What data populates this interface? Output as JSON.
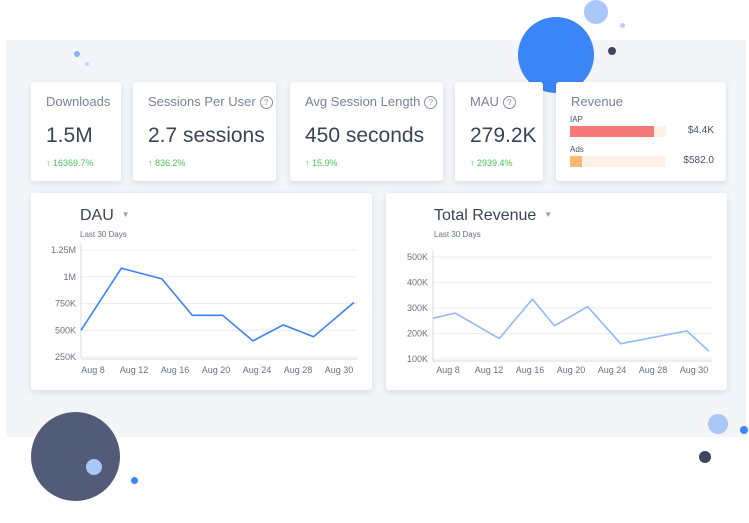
{
  "kpis": [
    {
      "label": "Downloads",
      "value": "1.5M",
      "change": "16369.7%",
      "help": false
    },
    {
      "label": "Sessions Per User",
      "value": "2.7 sessions",
      "change": "836.2%",
      "help": true
    },
    {
      "label": "Avg Session Length",
      "value": "450 seconds",
      "change": "15.9%",
      "help": true
    },
    {
      "label": "MAU",
      "value": "279.2K",
      "change": "2939.4%",
      "help": true
    }
  ],
  "revenue_card": {
    "title": "Revenue",
    "rows": [
      {
        "label": "IAP",
        "value": "$4.4K",
        "fill": 0.88,
        "color": "#f47a7a"
      },
      {
        "label": "Ads",
        "value": "$582.0",
        "fill": 0.12,
        "color": "#f9b872"
      }
    ]
  },
  "colors": {
    "accent_blue": "#3b82f6",
    "positive_green": "#4cbf5a",
    "dark_circle": "#525b78"
  },
  "chart_data": [
    {
      "type": "line",
      "title": "DAU",
      "subtitle": "Last 30 Days",
      "x_ticks": [
        "Aug 8",
        "Aug 12",
        "Aug 16",
        "Aug 20",
        "Aug 24",
        "Aug 28",
        "Aug 30"
      ],
      "y_ticks": [
        "250K",
        "500K",
        "750K",
        "1M",
        "1.25M"
      ],
      "ylim": [
        250000,
        1250000
      ],
      "line_color": "#3b82f6",
      "series": [
        {
          "x": [
            8,
            12,
            16,
            19,
            22,
            25,
            28,
            31,
            35
          ],
          "values": [
            500000,
            1080000,
            980000,
            640000,
            640000,
            400000,
            550000,
            440000,
            760000
          ]
        }
      ]
    },
    {
      "type": "line",
      "title": "Total Revenue",
      "subtitle": "Last 30 Days",
      "x_ticks": [
        "Aug 8",
        "Aug 12",
        "Aug 16",
        "Aug 20",
        "Aug 24",
        "Aug 28",
        "Aug 30"
      ],
      "y_ticks": [
        "100K",
        "200K",
        "300K",
        "400K",
        "500K"
      ],
      "ylim": [
        100000,
        500000
      ],
      "line_color": "#93b8f6",
      "series": [
        {
          "x": [
            8,
            10,
            14,
            17,
            19,
            22,
            25,
            31,
            33
          ],
          "values": [
            260000,
            280000,
            180000,
            335000,
            230000,
            305000,
            160000,
            210000,
            130000
          ]
        }
      ]
    }
  ]
}
